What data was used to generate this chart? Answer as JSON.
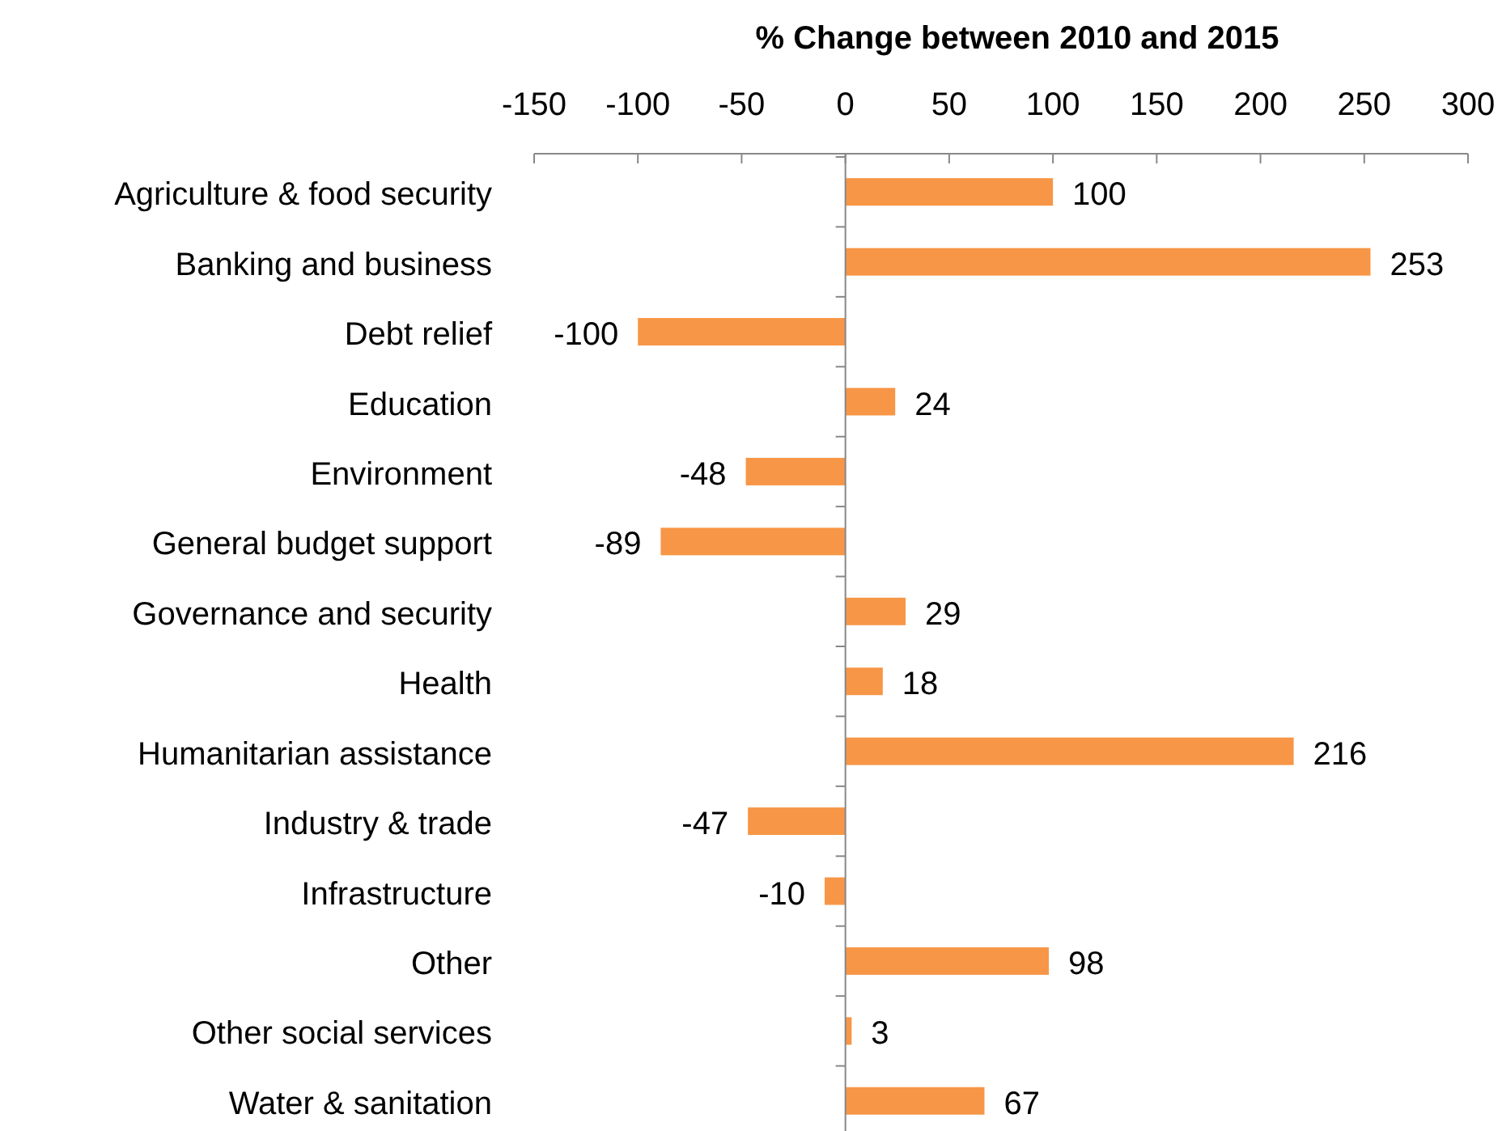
{
  "chart_data": {
    "type": "bar",
    "orientation": "horizontal",
    "xlabel": "% Change between 2010 and 2015",
    "categories": [
      "Agriculture & food security",
      "Banking and business",
      "Debt relief",
      "Education",
      "Environment",
      "General budget support",
      "Governance and security",
      "Health",
      "Humanitarian assistance",
      "Industry & trade",
      "Infrastructure",
      "Other",
      "Other social services",
      "Water & sanitation"
    ],
    "values": [
      100,
      253,
      -100,
      24,
      -48,
      -89,
      29,
      18,
      216,
      -47,
      -10,
      98,
      3,
      67
    ],
    "color": "#f79646",
    "xlim": [
      -150,
      300
    ],
    "xticks": [
      -150,
      -100,
      -50,
      0,
      50,
      100,
      150,
      200,
      250,
      300
    ],
    "data_labels": true
  }
}
